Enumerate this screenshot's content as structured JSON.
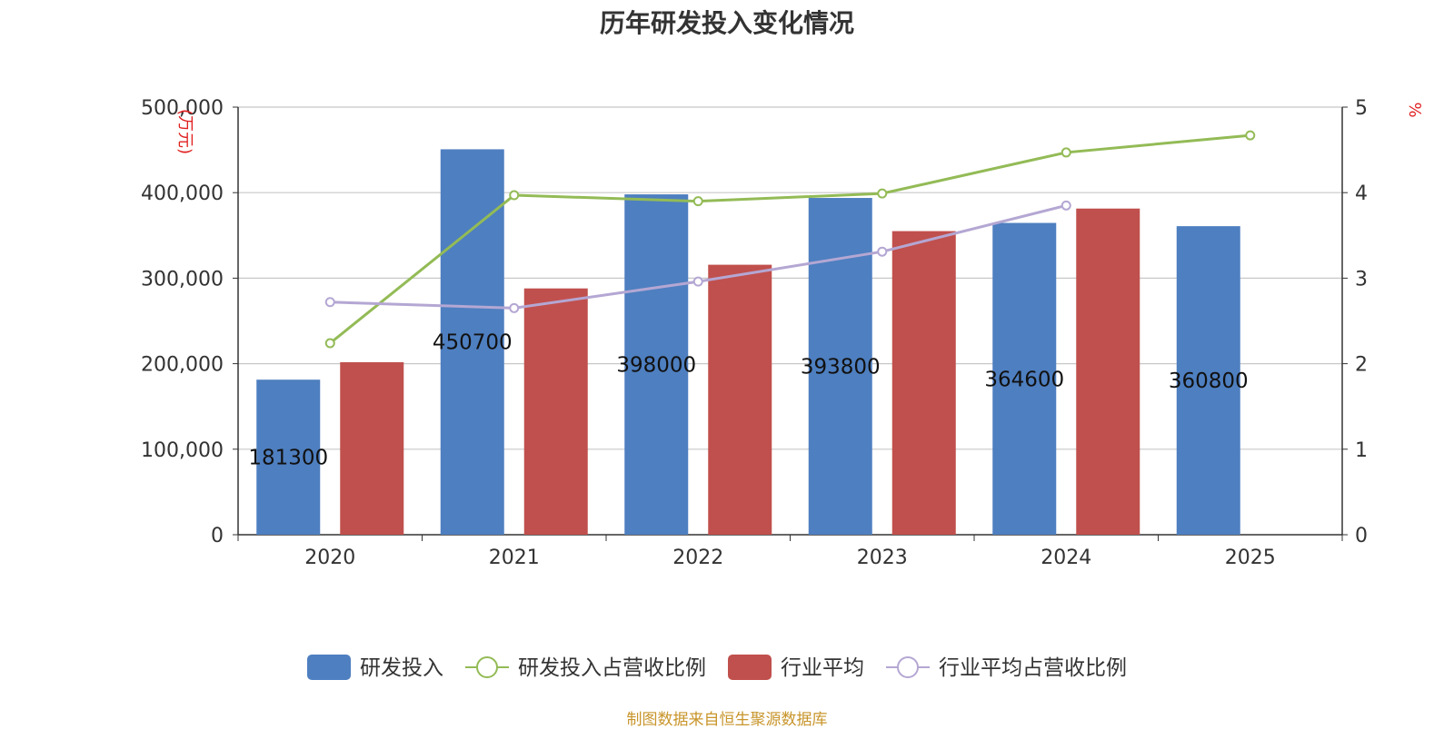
{
  "chart_data": {
    "type": "bar",
    "title": "历年研发投入变化情况",
    "categories": [
      "2020",
      "2021",
      "2022",
      "2023",
      "2024",
      "2025"
    ],
    "y_left": {
      "unit": "(万元)",
      "ylim": [
        0,
        500000
      ],
      "ticks": [
        "0",
        "100,000",
        "200,000",
        "300,000",
        "400,000",
        "500,000"
      ]
    },
    "y_right": {
      "unit": "%",
      "ylim": [
        0,
        5
      ],
      "ticks": [
        "0",
        "1",
        "2",
        "3",
        "4",
        "5"
      ]
    },
    "series": [
      {
        "name": "研发投入",
        "kind": "bar",
        "axis": "left",
        "color": "#4e7fc0",
        "values": [
          181300,
          450700,
          398000,
          393800,
          364600,
          360800
        ],
        "labels": [
          "181300",
          "450700",
          "398000",
          "393800",
          "364600",
          "360800"
        ]
      },
      {
        "name": "研发投入占营收比例",
        "kind": "line",
        "axis": "right",
        "color": "#93bb56",
        "values": [
          2.24,
          3.97,
          3.9,
          3.99,
          4.47,
          4.67
        ]
      },
      {
        "name": "行业平均",
        "kind": "bar",
        "axis": "left",
        "color": "#c0504d",
        "values": [
          201700,
          288000,
          315700,
          355000,
          381400,
          null
        ]
      },
      {
        "name": "行业平均占营收比例",
        "kind": "line",
        "axis": "right",
        "color": "#b4a7d3",
        "values": [
          2.72,
          2.65,
          2.96,
          3.31,
          3.85,
          null
        ]
      }
    ],
    "grid": true,
    "legend_position": "bottom"
  },
  "footer": "制图数据来自恒生聚源数据库"
}
